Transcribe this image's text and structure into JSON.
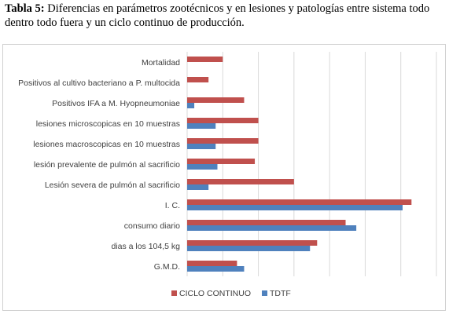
{
  "caption": {
    "label": "Tabla 5:",
    "text": " Diferencias en parámetros zootécnicos y en lesiones y patologías entre sistema todo dentro todo fuera y un ciclo continuo de producción."
  },
  "chart_data": {
    "type": "bar",
    "orientation": "horizontal",
    "title": "",
    "xlabel": "",
    "ylabel": "",
    "grid": true,
    "legend": "bottom",
    "xlim": [
      0,
      70
    ],
    "categories": [
      "Mortalidad",
      "Positivos al cultivo bacteriano a P. multocida",
      "Positivos IFA a M. Hyopneumoniae",
      "lesiones microscopicas en 10 muestras",
      "lesiones macroscopicas en 10 muestras",
      "lesión prevalente de pulmón al sacrificio",
      "Lesión severa de pulmón al sacrificio",
      "I. C.",
      "consumo diario",
      "dias a los 104,5 kg",
      "G.M.D."
    ],
    "series": [
      {
        "name": "CICLO CONTINUO",
        "color": "#c0504d",
        "values": [
          10,
          6,
          16,
          20,
          20,
          19,
          30,
          63,
          44.5,
          36.5,
          14
        ]
      },
      {
        "name": "TDTF",
        "color": "#4f81bd",
        "values": [
          null,
          null,
          2,
          8,
          8,
          8.5,
          6,
          60.5,
          47.5,
          34.5,
          16
        ]
      }
    ]
  }
}
